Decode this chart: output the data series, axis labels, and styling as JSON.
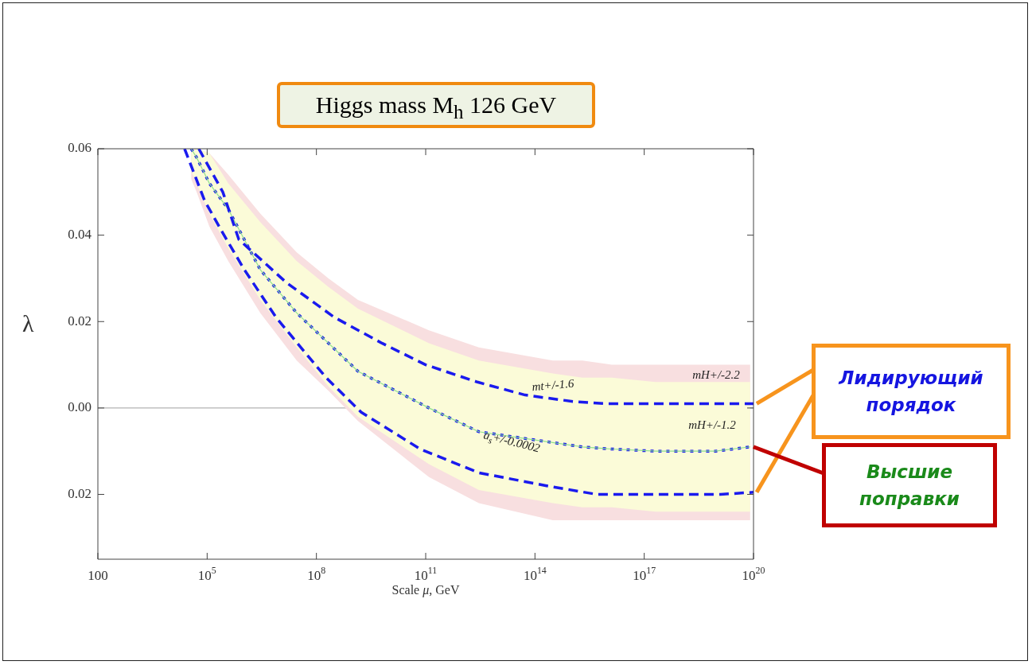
{
  "chart_data": {
    "type": "line",
    "title": "Higgs mass M$_{h}$  126 GeV",
    "xlabel": "Scale μ, GeV",
    "ylabel": "λ",
    "log": "x",
    "xlim": [
      100,
      1e+20
    ],
    "xticks": [
      100,
      {
        "value": 100000.0,
        "label": "10$^{5}$"
      },
      {
        "value": 100000000.0,
        "label": "10$^{8}$"
      },
      {
        "value": 100000000000.0,
        "label": "10$^{11}$"
      },
      {
        "value": 100000000000000.0,
        "label": "10$^{14}$"
      },
      {
        "value": 1e+17,
        "label": "10$^{17}$"
      },
      {
        "value": 1e+20,
        "label": "10$^{20}$"
      }
    ],
    "ylim": [
      -0.035,
      0.06
    ],
    "yticks": [
      0.06,
      0.04,
      0.02,
      {
        "value": 0,
        "label": "0.00"
      },
      {
        "value": -0.02,
        "label": "0.02"
      }
    ],
    "grid": false,
    "legend": false,
    "marker": "none",
    "ref_lines": [
      {
        "axis": "y",
        "value": 0,
        "color": "#a0a0a0"
      }
    ],
    "series": [
      {
        "color": "#1a1aee",
        "line_style": "dotted",
        "x": [
          36300.0,
          51300.0,
          115000.0,
          380000.0,
          2880000.0,
          28800000.0,
          214000000.0,
          1380000000.0,
          123000000000.0,
          2880000000000.0,
          309000000000000.0,
          2000000000000000.0,
          1.29e+16,
          2.04e+17,
          8.91e+18,
          8.13e+19
        ],
        "values": [
          0.06,
          0.058,
          0.052,
          0.046,
          0.032,
          0.022,
          0.015,
          0.0085,
          0.0,
          -0.0055,
          -0.008,
          -0.009,
          -0.0095,
          -0.01,
          -0.01,
          -0.009
        ],
        "lower": [
          0.053,
          0.05,
          0.042,
          0.034,
          0.022,
          0.011,
          0.004,
          -0.003,
          -0.016,
          -0.022,
          -0.026,
          -0.026,
          -0.026,
          -0.026,
          -0.026,
          -0.026
        ],
        "upper": [
          0.06,
          0.06,
          0.059,
          0.054,
          0.045,
          0.036,
          0.03,
          0.025,
          0.018,
          0.014,
          0.011,
          0.011,
          0.01,
          0.01,
          0.01,
          0.01
        ]
      },
      {
        "color": "#90e090",
        "line_style": "solid",
        "x": [
          36300.0,
          51300.0,
          115000.0,
          380000.0,
          2880000.0,
          28800000.0,
          214000000.0,
          1380000000.0,
          123000000000.0,
          2880000000000.0,
          309000000000000.0,
          2000000000000000.0,
          1.29e+16,
          2.04e+17,
          8.91e+18,
          8.13e+19
        ],
        "values": [
          0.06,
          0.058,
          0.052,
          0.046,
          0.032,
          0.022,
          0.015,
          0.0085,
          0.0,
          -0.0055,
          -0.008,
          -0.009,
          -0.0095,
          -0.01,
          -0.01,
          -0.009
        ],
        "lower": [
          0.055,
          0.052,
          0.045,
          0.037,
          0.025,
          0.014,
          0.005,
          -0.002,
          -0.013,
          -0.019,
          -0.022,
          -0.023,
          -0.023,
          -0.024,
          -0.024,
          -0.024
        ],
        "upper": [
          0.06,
          0.06,
          0.059,
          0.052,
          0.043,
          0.034,
          0.028,
          0.023,
          0.015,
          0.011,
          0.008,
          0.007,
          0.007,
          0.006,
          0.006,
          0.006
        ]
      },
      {
        "color": "#1a1aee",
        "line_style": "dashed",
        "x": [
          58900.0,
          269000.0,
          741000.0,
          15100000.0,
          309000000.0,
          6310000000.0,
          100000000000.0,
          2630000000000.0,
          53700000000000.0,
          1100000000000000.0,
          8130000000000000.0,
          1e+20
        ],
        "values": [
          0.06,
          0.05,
          0.039,
          0.029,
          0.021,
          0.015,
          0.01,
          0.006,
          0.003,
          0.0015,
          0.001,
          0.001
        ]
      },
      {
        "color": "#1a1aee",
        "line_style": "dashed",
        "x": [
          24000.0,
          85100.0,
          269000.0,
          1050000.0,
          7760000.0,
          58900000.0,
          186000000.0,
          1700000000.0,
          70800000000.0,
          2880000000000.0,
          209000000000000.0,
          5010000000000000.0,
          8.51e+18,
          1.26e+19,
          1e+20
        ],
        "values": [
          0.06,
          0.048,
          0.0405,
          0.032,
          0.021,
          0.012,
          0.007,
          -0.001,
          -0.0095,
          -0.015,
          -0.018,
          -0.02,
          -0.02,
          -0.02,
          -0.0195
        ]
      }
    ],
    "annotations": [
      "mt+/-1.6",
      "mH+/-2.2",
      "mH+/-1.2",
      "a$_{s}$+/-0.0002",
      "Лидирующий порядок",
      "Высшие поправки"
    ]
  }
}
